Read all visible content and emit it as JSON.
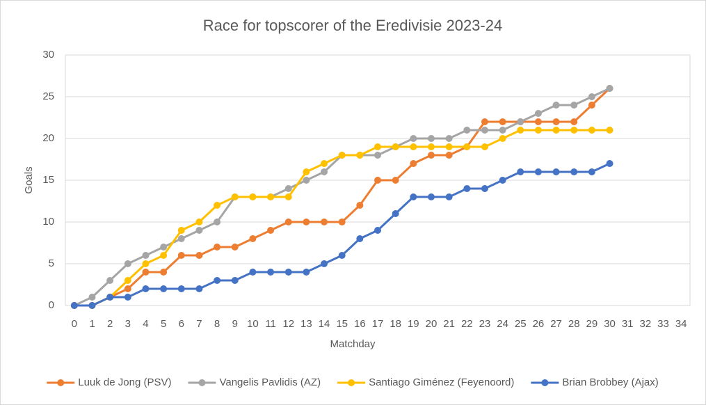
{
  "chart_data": {
    "type": "line",
    "title": "Race for topscorer of the Eredivisie 2023-24",
    "x_label": "Matchday",
    "y_label": "Goals",
    "x": [
      0,
      1,
      2,
      3,
      4,
      5,
      6,
      7,
      8,
      9,
      10,
      11,
      12,
      13,
      14,
      15,
      16,
      17,
      18,
      19,
      20,
      21,
      22,
      23,
      24,
      25,
      26,
      27,
      28,
      29,
      30,
      31,
      32,
      33,
      34
    ],
    "xlim": [
      -0.5,
      34.5
    ],
    "xticks": [
      0,
      1,
      2,
      3,
      4,
      5,
      6,
      7,
      8,
      9,
      10,
      11,
      12,
      13,
      14,
      15,
      16,
      17,
      18,
      19,
      20,
      21,
      22,
      23,
      24,
      25,
      26,
      27,
      28,
      29,
      30,
      31,
      32,
      33,
      34
    ],
    "ylim": [
      0,
      30
    ],
    "yticks": [
      0,
      5,
      10,
      15,
      20,
      25,
      30
    ],
    "grid": true,
    "legend": "bottom",
    "series": [
      {
        "name": "Luuk de Jong (PSV)",
        "color": "#ED7D31",
        "values": [
          0,
          0,
          1,
          2,
          4,
          4,
          6,
          6,
          7,
          7,
          8,
          9,
          10,
          10,
          10,
          10,
          12,
          15,
          15,
          17,
          18,
          18,
          19,
          22,
          22,
          22,
          22,
          22,
          22,
          24,
          26,
          null,
          null,
          null,
          null
        ]
      },
      {
        "name": "Vangelis Pavlidis (AZ)",
        "color": "#A5A5A5",
        "values": [
          0,
          1,
          3,
          5,
          6,
          7,
          8,
          9,
          10,
          13,
          13,
          13,
          14,
          15,
          16,
          18,
          18,
          18,
          19,
          20,
          20,
          20,
          21,
          21,
          21,
          22,
          23,
          24,
          24,
          25,
          26,
          null,
          null,
          null,
          null
        ]
      },
      {
        "name": "Santiago Giménez (Feyenoord)",
        "color": "#FFC000",
        "values": [
          0,
          0,
          1,
          3,
          5,
          6,
          9,
          10,
          12,
          13,
          13,
          13,
          13,
          16,
          17,
          18,
          18,
          19,
          19,
          19,
          19,
          19,
          19,
          19,
          20,
          21,
          21,
          21,
          21,
          21,
          21,
          null,
          null,
          null,
          null
        ]
      },
      {
        "name": "Brian Brobbey (Ajax)",
        "color": "#4472C4",
        "values": [
          0,
          0,
          1,
          1,
          2,
          2,
          2,
          2,
          3,
          3,
          4,
          4,
          4,
          4,
          5,
          6,
          8,
          9,
          11,
          13,
          13,
          13,
          14,
          14,
          15,
          16,
          16,
          16,
          16,
          16,
          17,
          null,
          null,
          null,
          null
        ]
      }
    ]
  }
}
